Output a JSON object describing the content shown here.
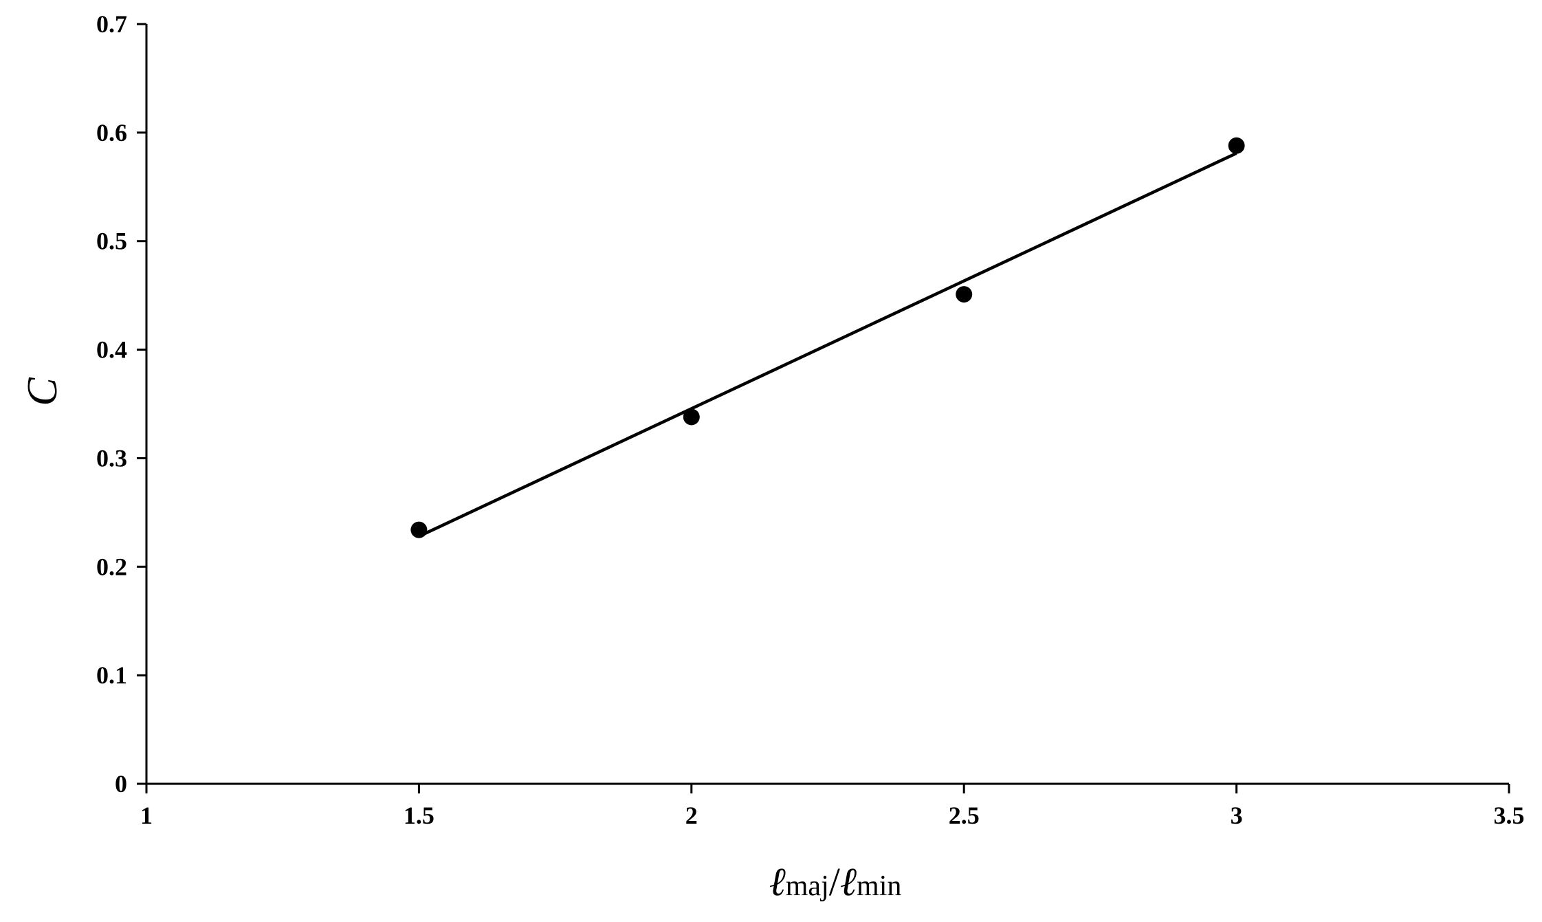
{
  "chart_data": {
    "type": "scatter",
    "title": "",
    "xlabel": {
      "symbol": "ℓ",
      "sub1": "maj",
      "slash": "/",
      "sub2": "min"
    },
    "ylabel": "C",
    "xlim": [
      1,
      3.5
    ],
    "ylim": [
      0,
      0.7
    ],
    "xticks": [
      "1",
      "1.5",
      "2",
      "2.5",
      "3",
      "3.5"
    ],
    "yticks": [
      "0",
      "0.1",
      "0.2",
      "0.3",
      "0.4",
      "0.5",
      "0.6",
      "0.7"
    ],
    "grid": false,
    "legend": "none",
    "series": [
      {
        "marker": "circle",
        "color": "#000000",
        "x": [
          1.5,
          2.0,
          2.5,
          3.0
        ],
        "y": [
          0.234,
          0.338,
          0.451,
          0.588
        ]
      }
    ],
    "trendline": {
      "type": "linear",
      "x": [
        1.5,
        3.0
      ],
      "y": [
        0.228,
        0.581
      ]
    }
  }
}
